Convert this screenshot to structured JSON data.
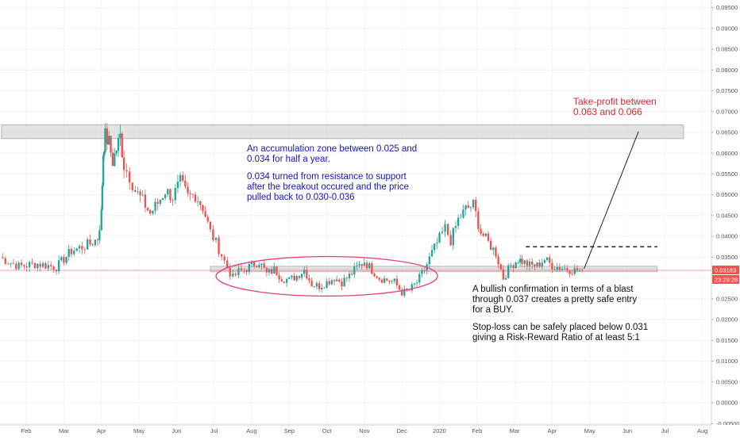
{
  "chart_data": {
    "type": "candlestick",
    "y_axis": {
      "ticks": [
        "0.09500",
        "0.09000",
        "0.08500",
        "0.08000",
        "0.07500",
        "0.07000",
        "0.06500",
        "0.06000",
        "0.05500",
        "0.05000",
        "0.04500",
        "0.04000",
        "0.03500",
        "0.03000",
        "0.02500",
        "0.02000",
        "0.01500",
        "0.01000",
        "0.00500",
        "0.00000",
        "-0.00500"
      ],
      "tick_values": [
        0.095,
        0.09,
        0.085,
        0.08,
        0.075,
        0.07,
        0.065,
        0.06,
        0.055,
        0.05,
        0.045,
        0.04,
        0.035,
        0.03,
        0.025,
        0.02,
        0.015,
        0.01,
        0.005,
        0.0,
        -0.005
      ],
      "range": [
        -0.00532,
        0.0968
      ],
      "position": "right"
    },
    "x_axis": {
      "labels": [
        "Feb",
        "Mar",
        "Apr",
        "May",
        "Jun",
        "Jul",
        "Aug",
        "Sep",
        "Oct",
        "Nov",
        "Dec",
        "2020",
        "Feb",
        "Mar",
        "Apr",
        "May",
        "Jun",
        "Jul",
        "Aug"
      ],
      "month_index": [
        1,
        2,
        3,
        4,
        5,
        6,
        7,
        8,
        9,
        10,
        11,
        12,
        13,
        14,
        15,
        16,
        17,
        18,
        19
      ],
      "range_months": [
        0.3,
        19.24
      ]
    },
    "series": [
      {
        "x_months": [
          0.3,
          0.8,
          1.3,
          1.8,
          2.2,
          2.7,
          2.9,
          3.0,
          3.05,
          3.1,
          3.2,
          3.3,
          3.4,
          3.5,
          3.6,
          3.75,
          3.9,
          4.1,
          4.3,
          4.5,
          4.7,
          4.9,
          5.1,
          5.3,
          5.5,
          5.7,
          5.9,
          6.05,
          6.2,
          6.35,
          6.5,
          6.65,
          6.8,
          7.0,
          7.2,
          7.4,
          7.6,
          7.8,
          8.0,
          8.2,
          8.4,
          8.6,
          8.8,
          9.0,
          9.2,
          9.4,
          9.6,
          9.8,
          10.0,
          10.2,
          10.4,
          10.6,
          10.8,
          11.0,
          11.2,
          11.4,
          11.6,
          11.8,
          12.0,
          12.15,
          12.3,
          12.5,
          12.7,
          12.9,
          13.1,
          13.3,
          13.5,
          13.7,
          13.9,
          14.1,
          14.2,
          14.4,
          14.6,
          14.8,
          15.0,
          15.2,
          15.4,
          15.6,
          15.8
        ],
        "close": [
          0.0349,
          0.0328,
          0.0334,
          0.0326,
          0.0365,
          0.0382,
          0.0395,
          0.0455,
          0.06,
          0.064,
          0.0625,
          0.058,
          0.061,
          0.064,
          0.057,
          0.0545,
          0.051,
          0.0485,
          0.0455,
          0.048,
          0.051,
          0.0495,
          0.053,
          0.0495,
          0.05,
          0.047,
          0.041,
          0.0385,
          0.0355,
          0.0325,
          0.03,
          0.0315,
          0.032,
          0.033,
          0.034,
          0.031,
          0.032,
          0.03,
          0.0295,
          0.0305,
          0.032,
          0.0285,
          0.028,
          0.029,
          0.03,
          0.029,
          0.0305,
          0.0325,
          0.034,
          0.032,
          0.03,
          0.0295,
          0.029,
          0.0265,
          0.027,
          0.029,
          0.032,
          0.036,
          0.0395,
          0.042,
          0.039,
          0.044,
          0.0465,
          0.0475,
          0.041,
          0.0385,
          0.036,
          0.03,
          0.033,
          0.0345,
          0.034,
          0.033,
          0.033,
          0.0345,
          0.033,
          0.0325,
          0.0322,
          0.0318,
          0.03183
        ]
      }
    ],
    "current_price": "0.03183",
    "countdown": "23:29:28",
    "resistance_zone": [
      0.0635,
      0.0668
    ],
    "support_zone": [
      0.0315,
      0.0328
    ],
    "breakout_level": 0.0375,
    "annotations": {
      "accumulation_line1": "An accumulation zone between 0.025 and",
      "accumulation_line2": "0.034 for half a year.",
      "flip_line1": "0.034 turned from resistance to support",
      "flip_line2": "after the breakout occured and the price",
      "flip_line3": "pulled back to 0.030-0.036",
      "tp_line1": "Take-profit between",
      "tp_line2": "0.063 and 0.066",
      "buy_line1": "A bullish confirmation in terms of a blast",
      "buy_line2": "through 0.037 creates a pretty safe entry",
      "buy_line3": "for a BUY.",
      "sl_line1": "Stop-loss can be safely placed below 0.031",
      "sl_line2": "giving a Risk-Reward Ratio of at least 5:1"
    },
    "colors": {
      "up": "#26a69a",
      "down": "#ef5350",
      "blue_text": "#1515c8",
      "red_text": "#e2262a",
      "ellipse": "#e83a8c",
      "price_tag": "#ef5350"
    }
  }
}
